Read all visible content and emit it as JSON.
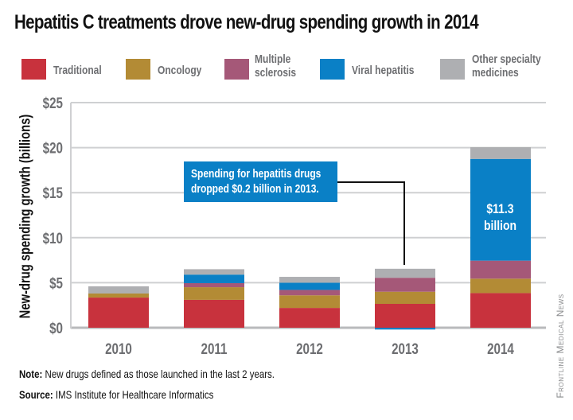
{
  "chart_data": {
    "type": "bar",
    "stacked": true,
    "title": "Hepatitis C treatments drove new-drug spending growth in 2014",
    "xlabel": "",
    "ylabel": "New-drug spending growth (billions)",
    "ylim": [
      0,
      25
    ],
    "yticks": [
      0,
      5,
      10,
      15,
      20,
      25
    ],
    "ytick_labels": [
      "$0",
      "$5",
      "$10",
      "$15",
      "$20",
      "$25"
    ],
    "grid": true,
    "legend_position": "top",
    "categories": [
      "2010",
      "2011",
      "2012",
      "2013",
      "2014"
    ],
    "series": [
      {
        "name": "Traditional",
        "color": "#c8323d",
        "values": [
          3.35,
          3.1,
          2.2,
          2.65,
          3.85
        ]
      },
      {
        "name": "Oncology",
        "color": "#b38b35",
        "values": [
          0.45,
          1.4,
          1.4,
          1.35,
          1.6
        ]
      },
      {
        "name": "Multiple sclerosis",
        "color": "#a55878",
        "values": [
          0.0,
          0.45,
          0.6,
          1.55,
          2.0
        ]
      },
      {
        "name": "Viral hepatitis",
        "color": "#0a80c6",
        "values": [
          0.0,
          0.95,
          0.8,
          -0.2,
          11.3
        ]
      },
      {
        "name": "Other specialty medicines",
        "color": "#aeafb2",
        "values": [
          0.8,
          0.6,
          0.65,
          1.0,
          1.3
        ]
      }
    ],
    "annotations": [
      {
        "text_lines": [
          "Spending for hepatitis drugs",
          "dropped $0.2 billion in 2013."
        ],
        "points_to": "2013"
      },
      {
        "text_lines": [
          "$11.3",
          "billion"
        ],
        "series": "Viral hepatitis",
        "category": "2014"
      }
    ]
  },
  "legend": [
    {
      "lines": [
        "Traditional"
      ]
    },
    {
      "lines": [
        "Oncology"
      ]
    },
    {
      "lines": [
        "Multiple",
        "sclerosis"
      ]
    },
    {
      "lines": [
        "Viral hepatitis"
      ]
    },
    {
      "lines": [
        "Other specialty",
        "medicines"
      ]
    }
  ],
  "footer": {
    "note_label": "Note:",
    "note_text": " New drugs defined as those launched in the last 2 years.",
    "source_label": "Source:",
    "source_text": " IMS Institute for Healthcare Informatics"
  },
  "watermark": "Frontline Medical News"
}
